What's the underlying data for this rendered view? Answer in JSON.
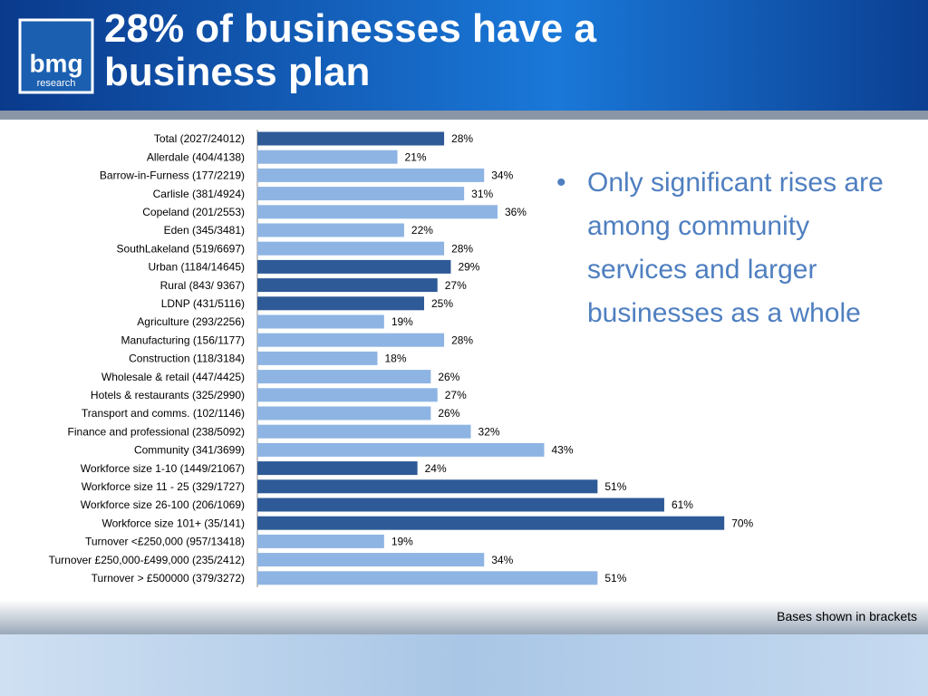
{
  "header": {
    "title": "28% of businesses have a business plan",
    "logo": "bmg",
    "logo_sub": "research"
  },
  "chart_data": {
    "type": "bar",
    "orientation": "horizontal",
    "categories": [
      "Total (2027/24012)",
      "Allerdale (404/4138)",
      "Barrow-in-Furness (177/2219)",
      "Carlisle (381/4924)",
      "Copeland (201/2553)",
      "Eden (345/3481)",
      "SouthLakeland (519/6697)",
      "Urban (1184/14645)",
      "Rural (843/ 9367)",
      "LDNP (431/5116)",
      "Agriculture (293/2256)",
      "Manufacturing (156/1177)",
      "Construction (118/3184)",
      "Wholesale & retail (447/4425)",
      "Hotels & restaurants (325/2990)",
      "Transport and comms. (102/1146)",
      "Finance and professional (238/5092)",
      "Community (341/3699)",
      "Workforce size 1-10 (1449/21067)",
      "Workforce size 11 - 25 (329/1727)",
      "Workforce size 26-100 (206/1069)",
      "Workforce size 101+ (35/141)",
      "Turnover <£250,000 (957/13418)",
      "Turnover £250,000-£499,000 (235/2412)",
      "Turnover > £500000 (379/3272)"
    ],
    "values": [
      28,
      21,
      34,
      31,
      36,
      22,
      28,
      29,
      27,
      25,
      19,
      28,
      18,
      26,
      27,
      26,
      32,
      43,
      24,
      51,
      61,
      70,
      19,
      34,
      51
    ],
    "value_labels": [
      "28%",
      "21%",
      "34%",
      "31%",
      "36%",
      "22%",
      "28%",
      "29%",
      "27%",
      "25%",
      "19%",
      "28%",
      "18%",
      "26%",
      "27%",
      "26%",
      "32%",
      "43%",
      "24%",
      "51%",
      "61%",
      "70%",
      "19%",
      "34%",
      "51%"
    ],
    "colors": [
      "#2e5a97",
      "#8eb4e3",
      "#8eb4e3",
      "#8eb4e3",
      "#8eb4e3",
      "#8eb4e3",
      "#8eb4e3",
      "#2e5a97",
      "#2e5a97",
      "#2e5a97",
      "#8eb4e3",
      "#8eb4e3",
      "#8eb4e3",
      "#8eb4e3",
      "#8eb4e3",
      "#8eb4e3",
      "#8eb4e3",
      "#8eb4e3",
      "#2e5a97",
      "#2e5a97",
      "#2e5a97",
      "#2e5a97",
      "#8eb4e3",
      "#8eb4e3",
      "#8eb4e3"
    ]
  },
  "bullet": "Only significant rises are among community services and larger businesses as a whole",
  "footnote": "Bases shown in brackets"
}
